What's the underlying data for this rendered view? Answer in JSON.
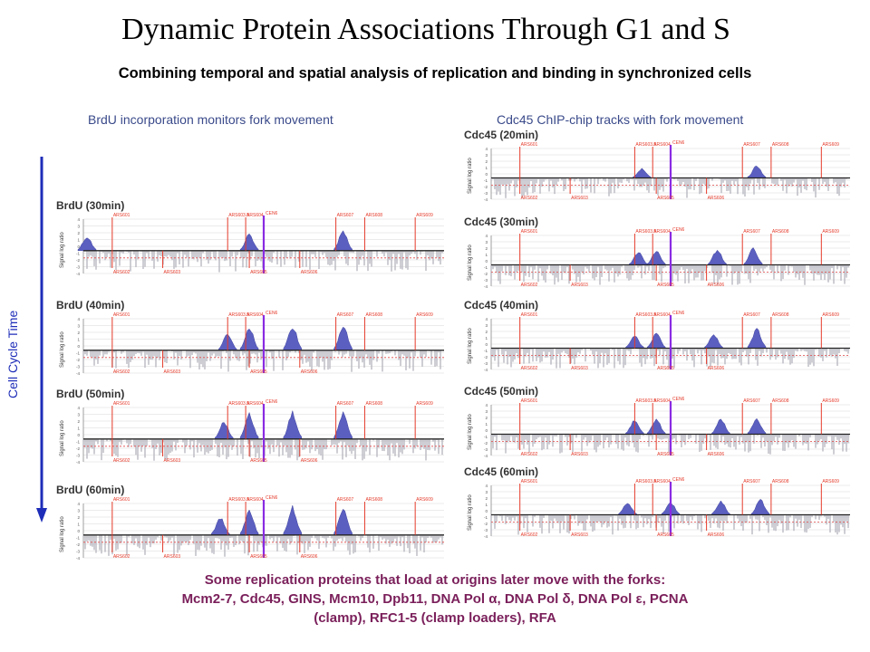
{
  "title": "Dynamic Protein Associations Through G1 and S",
  "subtitle": "Combining temporal and spatial analysis of replication and binding in synchronized cells",
  "left_column_heading": "BrdU incorporation monitors fork movement",
  "right_column_heading": "Cdc45 ChIP-chip tracks with fork movement",
  "time_axis_label": "Cell Cycle Time",
  "y_axis_label": "Signal log ratio",
  "centromere_label": "CEN6",
  "colors": {
    "marker": "#e53b2b",
    "peak": "#5b5fc0",
    "noise": "#b8b8c2",
    "centromere": "#8a2be2",
    "arrow": "#1e2db8"
  },
  "brdu_panels": [
    {
      "label": "BrdU (30min)",
      "peaks": [
        {
          "pos": 0.46,
          "h": 0.55
        },
        {
          "pos": 0.72,
          "h": 0.7
        },
        {
          "pos": 0.01,
          "h": 0.5
        }
      ]
    },
    {
      "label": "BrdU (40min)",
      "peaks": [
        {
          "pos": 0.4,
          "h": 0.55
        },
        {
          "pos": 0.46,
          "h": 0.8
        },
        {
          "pos": 0.58,
          "h": 0.85
        },
        {
          "pos": 0.72,
          "h": 0.85
        }
      ]
    },
    {
      "label": "BrdU (50min)",
      "peaks": [
        {
          "pos": 0.39,
          "h": 0.6
        },
        {
          "pos": 0.46,
          "h": 0.85
        },
        {
          "pos": 0.58,
          "h": 0.9
        },
        {
          "pos": 0.72,
          "h": 0.9
        }
      ]
    },
    {
      "label": "BrdU (60min)",
      "peaks": [
        {
          "pos": 0.38,
          "h": 0.6
        },
        {
          "pos": 0.46,
          "h": 0.85
        },
        {
          "pos": 0.58,
          "h": 0.95
        },
        {
          "pos": 0.72,
          "h": 0.95
        }
      ]
    }
  ],
  "cdc45_panels": [
    {
      "label": "Cdc45 (20min)",
      "peaks": [
        {
          "pos": 0.42,
          "h": 0.35
        },
        {
          "pos": 0.74,
          "h": 0.45
        }
      ]
    },
    {
      "label": "Cdc45 (30min)",
      "peaks": [
        {
          "pos": 0.41,
          "h": 0.45
        },
        {
          "pos": 0.46,
          "h": 0.5
        },
        {
          "pos": 0.63,
          "h": 0.55
        },
        {
          "pos": 0.73,
          "h": 0.6
        }
      ]
    },
    {
      "label": "Cdc45 (40min)",
      "peaks": [
        {
          "pos": 0.4,
          "h": 0.45
        },
        {
          "pos": 0.46,
          "h": 0.55
        },
        {
          "pos": 0.62,
          "h": 0.5
        },
        {
          "pos": 0.74,
          "h": 0.7
        }
      ]
    },
    {
      "label": "Cdc45 (50min)",
      "peaks": [
        {
          "pos": 0.4,
          "h": 0.5
        },
        {
          "pos": 0.46,
          "h": 0.55
        },
        {
          "pos": 0.64,
          "h": 0.55
        },
        {
          "pos": 0.74,
          "h": 0.55
        }
      ]
    },
    {
      "label": "Cdc45 (60min)",
      "peaks": [
        {
          "pos": 0.38,
          "h": 0.45
        },
        {
          "pos": 0.5,
          "h": 0.45
        },
        {
          "pos": 0.64,
          "h": 0.5
        },
        {
          "pos": 0.75,
          "h": 0.55
        }
      ]
    }
  ],
  "ars_top": [
    {
      "name": "ARS601",
      "pos": 0.08
    },
    {
      "name": "ARS603.5",
      "pos": 0.4
    },
    {
      "name": "ARS604",
      "pos": 0.45
    },
    {
      "name": "ARS607",
      "pos": 0.7
    },
    {
      "name": "ARS608",
      "pos": 0.78
    },
    {
      "name": "ARS609",
      "pos": 0.92
    }
  ],
  "ars_bottom": [
    {
      "name": "ARS602",
      "pos": 0.08
    },
    {
      "name": "ARS603",
      "pos": 0.22
    },
    {
      "name": "ARS605",
      "pos": 0.46
    },
    {
      "name": "ARS606",
      "pos": 0.6
    }
  ],
  "footer": {
    "line1": "Some replication proteins that load at origins later move with the forks:",
    "line2": "Mcm2-7, Cdc45, GINS, Mcm10, Dpb11, DNA Pol α, DNA Pol δ, DNA Pol ε, PCNA",
    "line3": "(clamp), RFC1-5 (clamp loaders), RFA"
  }
}
